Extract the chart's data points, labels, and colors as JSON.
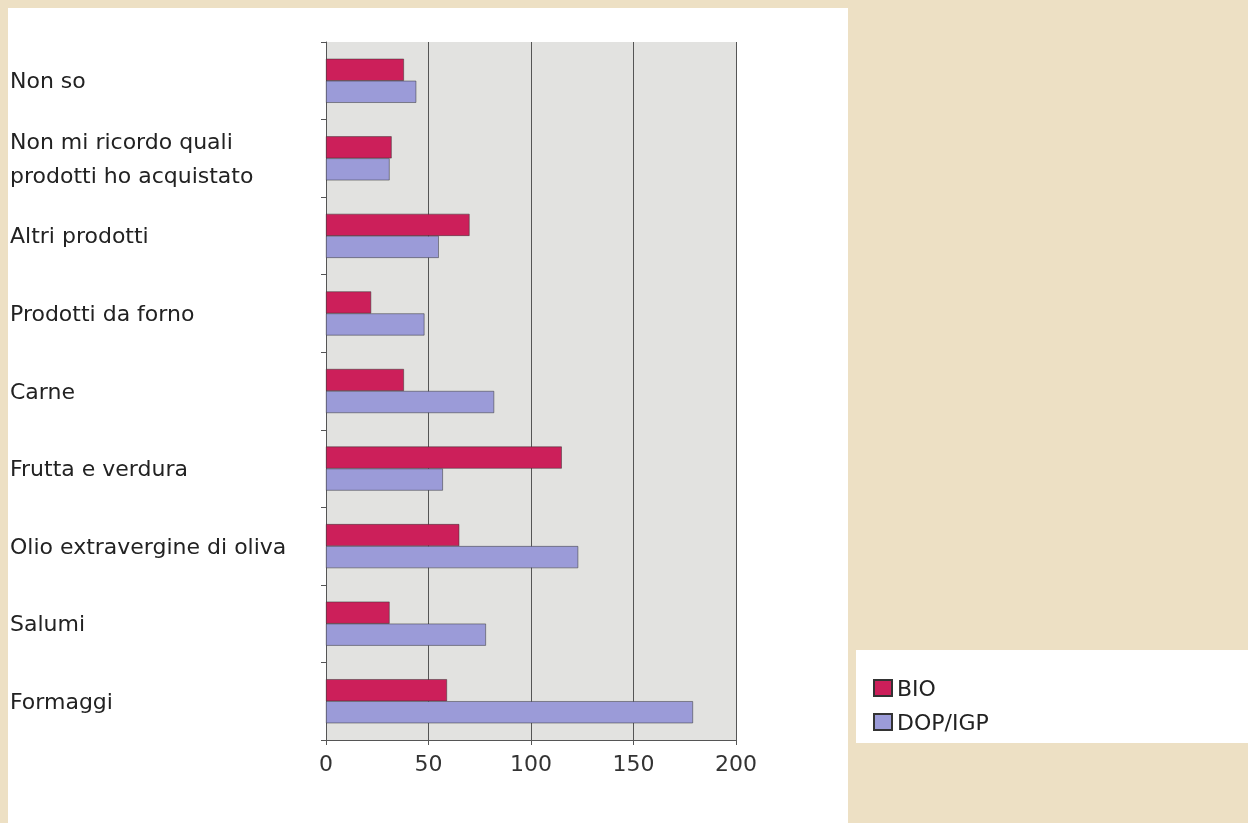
{
  "chart_data": {
    "type": "bar",
    "orientation": "horizontal",
    "categories": [
      "Non so",
      "Non mi ricordo quali prodotti ho acquistato",
      "Altri prodotti",
      "Prodotti da forno",
      "Carne",
      "Frutta e verdura",
      "Olio extravergine di oliva",
      "Salumi",
      "Formaggi"
    ],
    "series": [
      {
        "name": "BIO",
        "color": "#cc1f5a",
        "values": [
          38,
          32,
          70,
          22,
          38,
          115,
          65,
          31,
          59
        ]
      },
      {
        "name": "DOP/IGP",
        "color": "#9b9bd8",
        "values": [
          44,
          31,
          55,
          48,
          82,
          57,
          123,
          78,
          179
        ]
      }
    ],
    "xlim": [
      0,
      200
    ],
    "xticks": [
      0,
      50,
      100,
      150,
      200
    ],
    "grid": "x",
    "legend": "bottom right"
  }
}
